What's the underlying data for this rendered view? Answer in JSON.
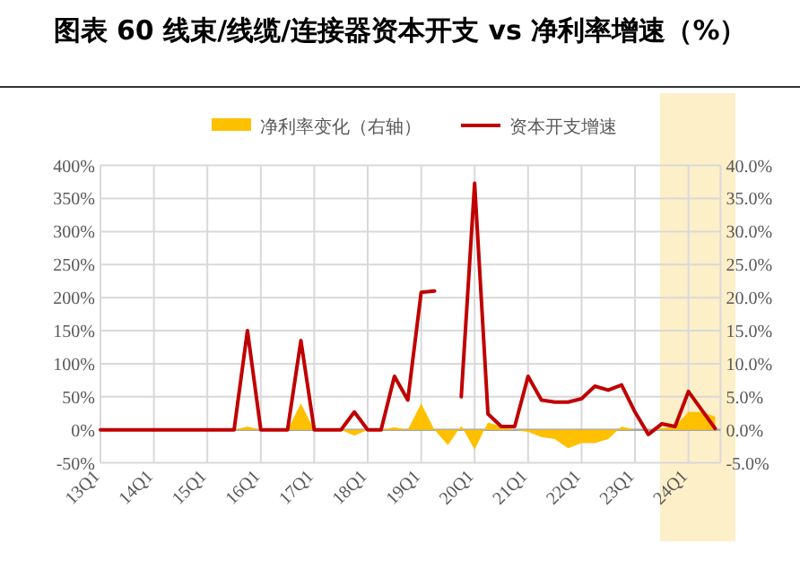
{
  "chart_data": {
    "type": "line",
    "title": "图表 60 线束/线缆/连接器资本开支 vs 净利率增速（%）",
    "categories": [
      "13Q1",
      null,
      null,
      null,
      "14Q1",
      null,
      null,
      null,
      "15Q1",
      null,
      null,
      null,
      "16Q1",
      null,
      null,
      null,
      "17Q1",
      null,
      null,
      null,
      "18Q1",
      null,
      null,
      null,
      "19Q1",
      null,
      null,
      null,
      "20Q1",
      null,
      null,
      null,
      "21Q1",
      null,
      null,
      null,
      "22Q1",
      null,
      null,
      null,
      "23Q1",
      null,
      null,
      null,
      "24Q1",
      null,
      null
    ],
    "series": [
      {
        "name": "净利率变化（右轴）",
        "type": "area",
        "axis": "y2",
        "color": "#ffc000",
        "values": [
          0,
          0,
          0,
          0,
          0,
          0,
          0,
          0,
          0,
          0,
          0,
          0.5,
          0,
          0,
          0,
          4.0,
          0,
          0,
          0,
          -0.9,
          0,
          0,
          0.4,
          0,
          4.0,
          0,
          -2.3,
          0.6,
          -3.0,
          1.1,
          0.5,
          0,
          -0.3,
          -1.1,
          -1.4,
          -2.8,
          -2.0,
          -2.0,
          -1.4,
          0.5,
          0,
          0,
          0.2,
          0.5,
          2.7,
          2.7,
          2.0
        ]
      },
      {
        "name": "资本开支增速",
        "color": "#c00000",
        "values": [
          0,
          0,
          0,
          0,
          0,
          0,
          0,
          0,
          0,
          0,
          0,
          150,
          0,
          0,
          0,
          135,
          0,
          0,
          0,
          27,
          0,
          0,
          81,
          45,
          208,
          210,
          null,
          50,
          373,
          24,
          5,
          5,
          81,
          45,
          42,
          42,
          47,
          66,
          60,
          68,
          27,
          -7,
          9,
          5,
          58,
          30,
          2
        ]
      }
    ],
    "ylim": [
      -50,
      400
    ],
    "yticks": [
      {
        "value": -50,
        "label": "-50%"
      },
      {
        "value": 0,
        "label": "0%"
      },
      {
        "value": 50,
        "label": "50%"
      },
      {
        "value": 100,
        "label": "100%"
      },
      {
        "value": 150,
        "label": "150%"
      },
      {
        "value": 200,
        "label": "200%"
      },
      {
        "value": 250,
        "label": "250%"
      },
      {
        "value": 300,
        "label": "300%"
      },
      {
        "value": 350,
        "label": "350%"
      },
      {
        "value": 400,
        "label": "400%"
      }
    ],
    "y2lim": [
      -5,
      40
    ],
    "y2ticks": [
      {
        "value": -5,
        "label": "-5.0%"
      },
      {
        "value": 0,
        "label": "0.0%"
      },
      {
        "value": 5,
        "label": "5.0%"
      },
      {
        "value": 10,
        "label": "10.0%"
      },
      {
        "value": 15,
        "label": "15.0%"
      },
      {
        "value": 20,
        "label": "20.0%"
      },
      {
        "value": 25,
        "label": "25.0%"
      },
      {
        "value": 30,
        "label": "30.0%"
      },
      {
        "value": 35,
        "label": "35.0%"
      },
      {
        "value": 40,
        "label": "40.0%"
      }
    ],
    "grid": true,
    "legend": "top"
  }
}
